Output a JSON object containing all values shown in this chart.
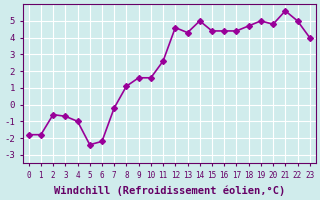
{
  "x": [
    0,
    1,
    2,
    3,
    4,
    5,
    6,
    7,
    8,
    9,
    10,
    11,
    12,
    13,
    14,
    15,
    16,
    17,
    18,
    19,
    20,
    21,
    22,
    23
  ],
  "y": [
    -1.8,
    -1.8,
    -0.6,
    -0.7,
    -1.0,
    -2.4,
    -2.2,
    -0.2,
    1.1,
    1.6,
    1.6,
    2.6,
    4.6,
    4.3,
    5.0,
    4.4,
    4.4,
    4.4,
    4.7,
    5.0,
    4.8,
    5.6,
    5.0,
    4.0
  ],
  "line_color": "#990099",
  "marker": "D",
  "marker_size": 3,
  "line_width": 1.2,
  "xlabel": "Windchill (Refroidissement éolien,°C)",
  "xlabel_fontsize": 7.5,
  "xtick_labels": [
    "0",
    "1",
    "2",
    "3",
    "4",
    "5",
    "6",
    "7",
    "8",
    "9",
    "10",
    "11",
    "12",
    "13",
    "14",
    "15",
    "16",
    "17",
    "18",
    "19",
    "20",
    "21",
    "22",
    "23"
  ],
  "ytick_vals": [
    -3,
    -2,
    -1,
    0,
    1,
    2,
    3,
    4,
    5
  ],
  "ytick_labels": [
    "-3",
    "-2",
    "-1",
    "0",
    "1",
    "2",
    "3",
    "4",
    "5"
  ],
  "ylim": [
    -3.5,
    6.0
  ],
  "xlim": [
    -0.5,
    23.5
  ],
  "bg_color": "#d0ecec",
  "grid_color": "#ffffff",
  "tick_color": "#660066",
  "spine_color": "#660066",
  "label_color": "#660066"
}
